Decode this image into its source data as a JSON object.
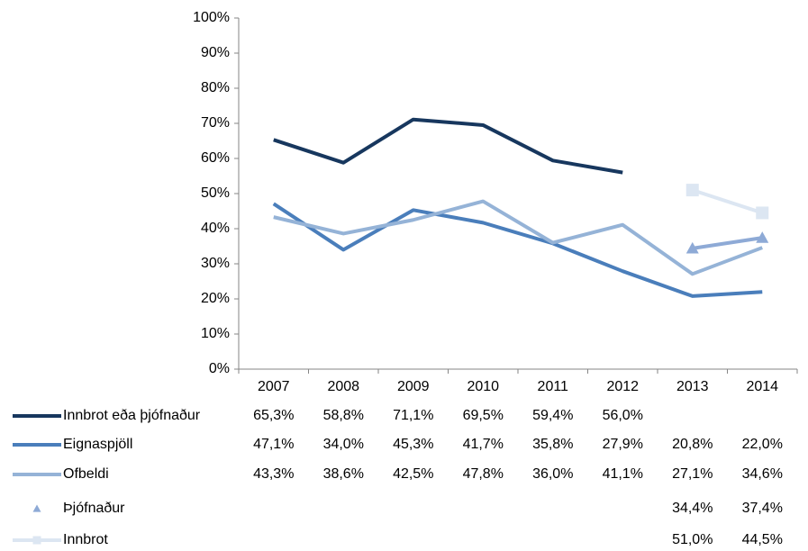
{
  "chart_data": {
    "type": "line",
    "categories": [
      "2007",
      "2008",
      "2009",
      "2010",
      "2011",
      "2012",
      "2013",
      "2014"
    ],
    "ylim": [
      0,
      100
    ],
    "yticks": [
      {
        "value": 0,
        "label": "0%"
      },
      {
        "value": 10,
        "label": "10%"
      },
      {
        "value": 20,
        "label": "20%"
      },
      {
        "value": 30,
        "label": "30%"
      },
      {
        "value": 40,
        "label": "40%"
      },
      {
        "value": 50,
        "label": "50%"
      },
      {
        "value": 60,
        "label": "60%"
      },
      {
        "value": 70,
        "label": "70%"
      },
      {
        "value": 80,
        "label": "80%"
      },
      {
        "value": 90,
        "label": "90%"
      },
      {
        "value": 100,
        "label": "100%"
      }
    ],
    "grid": false,
    "series": [
      {
        "name": "Innbrot eða þjófnaður",
        "color": "#17375e",
        "marker": "none",
        "values": [
          65.3,
          58.8,
          71.1,
          69.5,
          59.4,
          56.0,
          null,
          null
        ],
        "value_labels": [
          "65,3%",
          "58,8%",
          "71,1%",
          "69,5%",
          "59,4%",
          "56,0%",
          null,
          null
        ]
      },
      {
        "name": "Eignaspjöll",
        "color": "#4a7ebb",
        "marker": "none",
        "values": [
          47.1,
          34.0,
          45.3,
          41.7,
          35.8,
          27.9,
          20.8,
          22.0
        ],
        "value_labels": [
          "47,1%",
          "34,0%",
          "45,3%",
          "41,7%",
          "35,8%",
          "27,9%",
          "20,8%",
          "22,0%"
        ]
      },
      {
        "name": "Ofbeldi",
        "color": "#95b3d7",
        "marker": "none",
        "values": [
          43.3,
          38.6,
          42.5,
          47.8,
          36.0,
          41.1,
          27.1,
          34.6
        ],
        "value_labels": [
          "43,3%",
          "38,6%",
          "42,5%",
          "47,8%",
          "36,0%",
          "41,1%",
          "27,1%",
          "34,6%"
        ]
      },
      {
        "name": "Þjófnaður",
        "color": "#8eaad6",
        "marker": "triangle",
        "values": [
          null,
          null,
          null,
          null,
          null,
          null,
          34.4,
          37.4
        ],
        "value_labels": [
          null,
          null,
          null,
          null,
          null,
          null,
          "34,4%",
          "37,4%"
        ]
      },
      {
        "name": "Innbrot",
        "color": "#dce6f2",
        "marker": "square",
        "values": [
          null,
          null,
          null,
          null,
          null,
          null,
          51.0,
          44.5
        ],
        "value_labels": [
          null,
          null,
          null,
          null,
          null,
          null,
          "51,0%",
          "44,5%"
        ]
      }
    ]
  }
}
